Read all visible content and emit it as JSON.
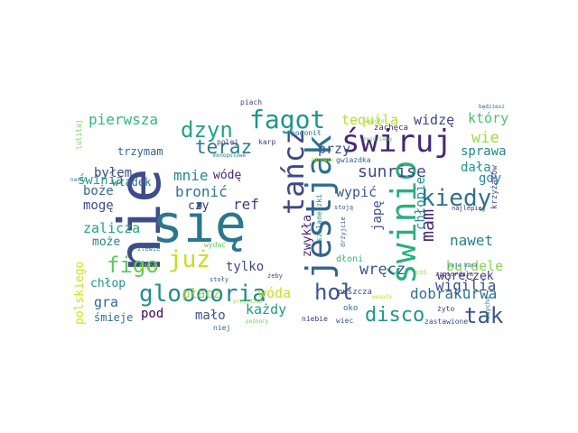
{
  "words": [
    {
      "text": "nie",
      "color": "#3e4c8a"
    },
    {
      "text": "się",
      "color": "#2a788e"
    },
    {
      "text": "jest",
      "color": "#33638d"
    },
    {
      "text": "jak",
      "color": "#2c728e"
    },
    {
      "text": "świnio",
      "color": "#29af7f"
    },
    {
      "text": "świruj",
      "color": "#482677"
    },
    {
      "text": "tańcz",
      "color": "#3f4788"
    },
    {
      "text": "fagot",
      "color": "#1f968b"
    },
    {
      "text": "dzyn",
      "color": "#20a486"
    },
    {
      "text": "już",
      "color": "#c2df23"
    },
    {
      "text": "figo",
      "color": "#5ec962"
    },
    {
      "text": "glooooria",
      "color": "#228c8d"
    },
    {
      "text": "hoł",
      "color": "#3b528b"
    },
    {
      "text": "kiedy",
      "color": "#2d708e"
    },
    {
      "text": "tak",
      "color": "#39568c"
    },
    {
      "text": "disco",
      "color": "#1f978b"
    },
    {
      "text": "teraz",
      "color": "#287c8e"
    },
    {
      "text": "mam",
      "color": "#472d7b"
    },
    {
      "text": "sunrise",
      "color": "#3e4989"
    },
    {
      "text": "wigilia",
      "color": "#3b518b"
    },
    {
      "text": "nawet",
      "color": "#26828e"
    },
    {
      "text": "wręcz",
      "color": "#38598c"
    },
    {
      "text": "burdele",
      "color": "#86d549"
    },
    {
      "text": "dobrakurwa",
      "color": "#2c728e"
    },
    {
      "text": "pierwsza",
      "color": "#35b779"
    },
    {
      "text": "tequila",
      "color": "#b8de29"
    },
    {
      "text": "widzę",
      "color": "#404688"
    },
    {
      "text": "który",
      "color": "#4ac16d"
    },
    {
      "text": "wie",
      "color": "#a0da39"
    },
    {
      "text": "sprawa",
      "color": "#24878e"
    },
    {
      "text": "przy",
      "color": "#3a548c"
    },
    {
      "text": "mnie",
      "color": "#23888e"
    },
    {
      "text": "wódę",
      "color": "#482475"
    },
    {
      "text": "byłem",
      "color": "#3f4889"
    },
    {
      "text": "bronić",
      "color": "#2a778e"
    },
    {
      "text": "ref",
      "color": "#433d84"
    },
    {
      "text": "wypić",
      "color": "#39568c"
    },
    {
      "text": "dała",
      "color": "#1f9a8a"
    },
    {
      "text": "gdy",
      "color": "#25848e"
    },
    {
      "text": "świnia",
      "color": "#21a685"
    },
    {
      "text": "władek",
      "color": "#2e6e8e"
    },
    {
      "text": "boże",
      "color": "#31688e"
    },
    {
      "text": "mogę",
      "color": "#3e4a89"
    },
    {
      "text": "czy",
      "color": "#46337f"
    },
    {
      "text": "zalicza",
      "color": "#20a386"
    },
    {
      "text": "może",
      "color": "#26828e"
    },
    {
      "text": "japę",
      "color": "#3d4d8a"
    },
    {
      "text": "chłopie",
      "color": "#1f958b"
    },
    {
      "text": "płacz",
      "color": "#9bd93c"
    },
    {
      "text": "tylko",
      "color": "#414487"
    },
    {
      "text": "gra",
      "color": "#30698e"
    },
    {
      "text": "chłop",
      "color": "#20928c"
    },
    {
      "text": "wóda",
      "color": "#c8e020"
    },
    {
      "text": "każdy",
      "color": "#1e9b8a"
    },
    {
      "text": "pod",
      "color": "#440154"
    },
    {
      "text": "mało",
      "color": "#3b528b"
    },
    {
      "text": "polskiego",
      "color": "#d2e21b"
    },
    {
      "text": "śmieje",
      "color": "#2d708e"
    },
    {
      "text": "zwykła",
      "color": "#482677"
    },
    {
      "text": "woreczek",
      "color": "#46327e"
    },
    {
      "text": "trzymam",
      "color": "#32658e"
    },
    {
      "text": "lulilaj",
      "color": "#7ad151"
    },
    {
      "text": "piach",
      "color": "#414487"
    },
    {
      "text": "karp",
      "color": "#424086"
    },
    {
      "text": "polej",
      "color": "#3f4788"
    },
    {
      "text": "monopolowe",
      "color": "#287d8e"
    },
    {
      "text": "pogonił",
      "color": "#2e6f8e"
    },
    {
      "text": "zachęca",
      "color": "#472c7a"
    },
    {
      "text": "gwiazdka",
      "color": "#355e8d"
    },
    {
      "text": "zdrowie",
      "color": "#b5de2b"
    },
    {
      "text": "krzyżaków",
      "color": "#3e4c8a"
    },
    {
      "text": "najlepiej",
      "color": "#46307e"
    },
    {
      "text": "stoją",
      "color": "#3b528b"
    },
    {
      "text": "szklaneczki",
      "color": "#24868e"
    },
    {
      "text": "drżyjcie",
      "color": "#38598c"
    },
    {
      "text": "zapierdala",
      "color": "#453882"
    },
    {
      "text": "zdycha",
      "color": "#2c728e"
    },
    {
      "text": "żyto",
      "color": "#472d7b"
    },
    {
      "text": "poje bana",
      "color": "#2a788e"
    },
    {
      "text": "coś",
      "color": "#a5db36"
    },
    {
      "text": "dłoni",
      "color": "#35b779"
    },
    {
      "text": "puszcza",
      "color": "#3e4a89"
    },
    {
      "text": "oko",
      "color": "#31688e"
    },
    {
      "text": "niebie",
      "color": "#472f7d"
    },
    {
      "text": "wiec",
      "color": "#3a548c"
    },
    {
      "text": "zastawione",
      "color": "#3e4989"
    },
    {
      "text": "wydać",
      "color": "#5ec962"
    },
    {
      "text": "żeby",
      "color": "#3b528b"
    },
    {
      "text": "pito",
      "color": "#c2df23"
    },
    {
      "text": "zlewie",
      "color": "#287d8e"
    },
    {
      "text": "stoły",
      "color": "#3b528b"
    },
    {
      "text": "niej",
      "color": "#31688e"
    },
    {
      "text": "przyjdzie",
      "color": "#a8db34"
    },
    {
      "text": "poźnocy",
      "color": "#6ccd5a"
    },
    {
      "text": "naród",
      "color": "#2a788e"
    },
    {
      "text": "wesoła",
      "color": "#bddf26"
    },
    {
      "text": "będziesz",
      "color": "#2d708e"
    },
    {
      "text": "wesołe",
      "color": "#8fd744"
    },
    {
      "text": "zejdziemy",
      "color": "#5ec962"
    }
  ]
}
